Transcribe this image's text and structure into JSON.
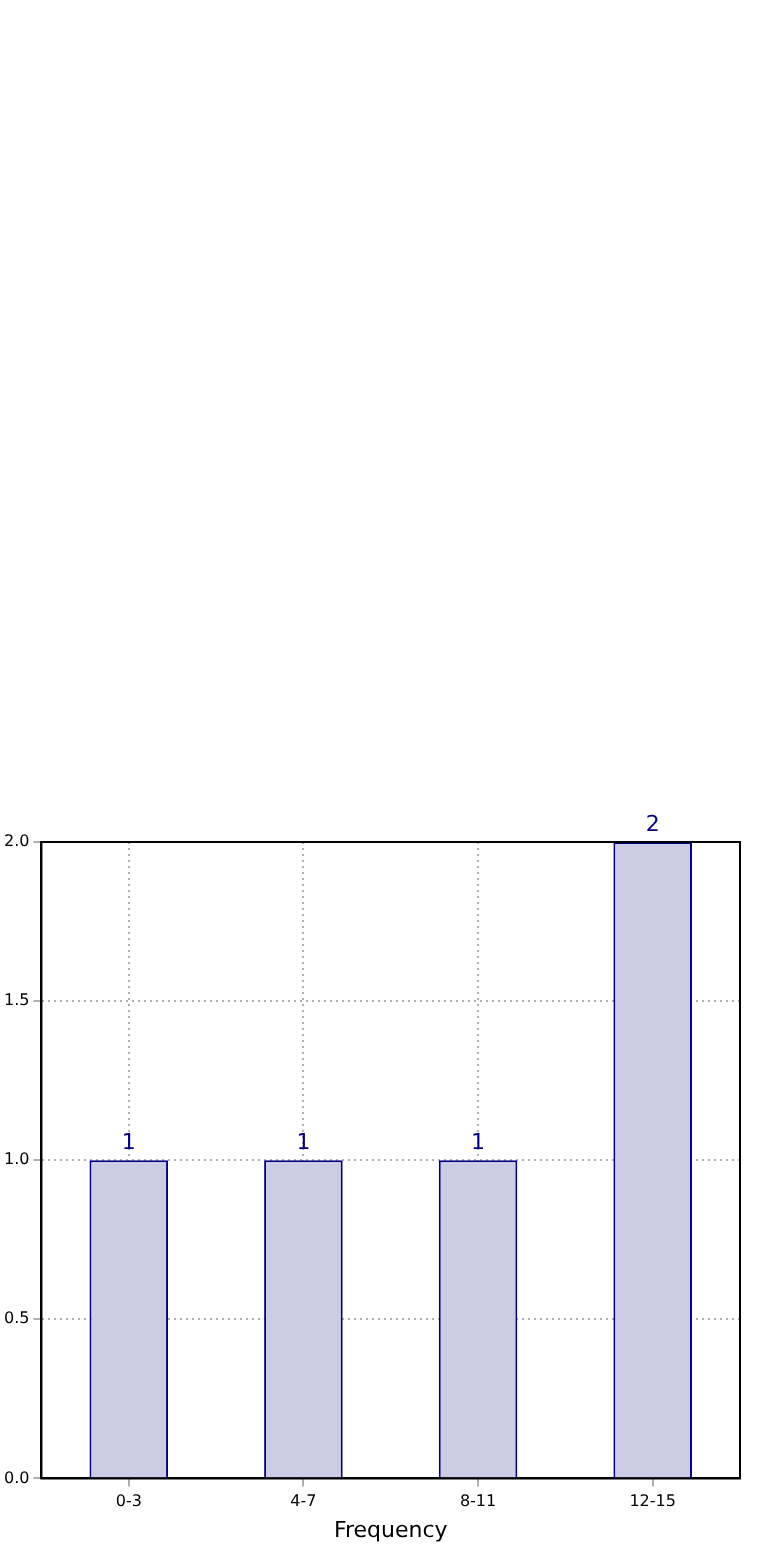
{
  "chart_data": {
    "type": "bar",
    "xlabel": "Frequency",
    "categories": [
      "0-3",
      "4-7",
      "8-11",
      "12-15"
    ],
    "values": [
      1,
      1,
      1,
      2
    ],
    "color": "#ccccE5",
    "ylim": [
      0,
      2
    ],
    "yticks": [
      {
        "value": 0,
        "label": "0.0"
      },
      {
        "value": 0.5,
        "label": "0.5"
      },
      {
        "value": 1,
        "label": "1.0"
      },
      {
        "value": 1.5,
        "label": "1.5"
      },
      {
        "value": 2,
        "label": "2.0"
      }
    ],
    "grid": true,
    "data_labels": true
  }
}
